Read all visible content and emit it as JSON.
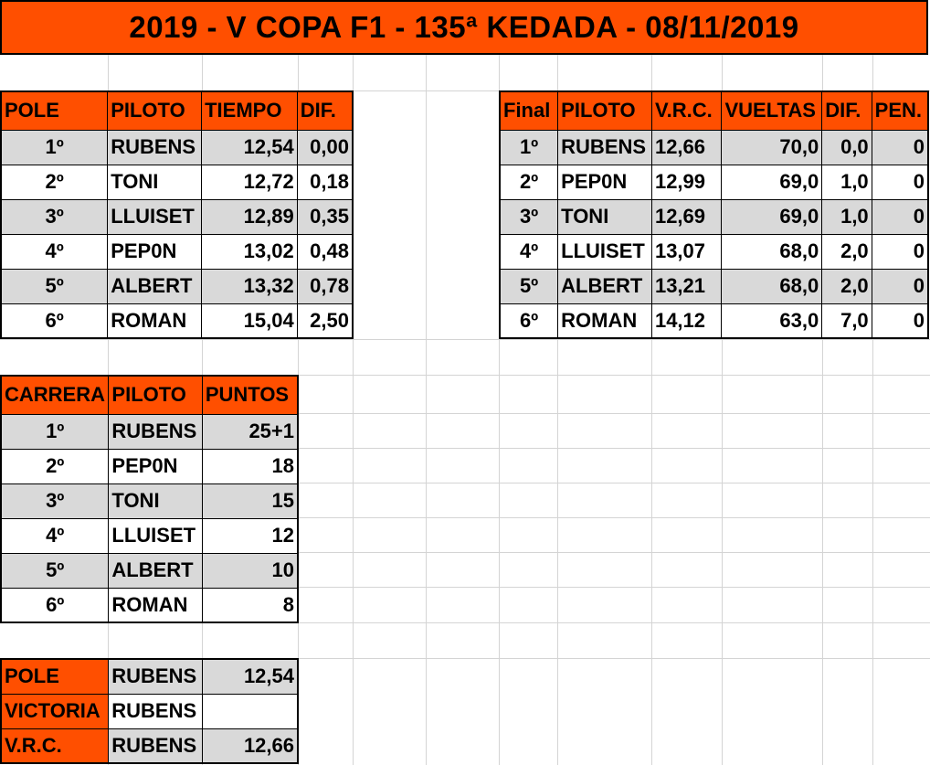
{
  "title": "2019 - V COPA F1 - 135ª KEDADA - 08/11/2019",
  "pole_table": {
    "headers": [
      "POLE",
      "PILOTO",
      "TIEMPO",
      "DIF."
    ],
    "rows": [
      [
        "1º",
        "RUBENS",
        "12,54",
        "0,00"
      ],
      [
        "2º",
        "TONI",
        "12,72",
        "0,18"
      ],
      [
        "3º",
        "LLUISET",
        "12,89",
        "0,35"
      ],
      [
        "4º",
        "PEP0N",
        "13,02",
        "0,48"
      ],
      [
        "5º",
        "ALBERT",
        "13,32",
        "0,78"
      ],
      [
        "6º",
        "ROMAN",
        "15,04",
        "2,50"
      ]
    ]
  },
  "final_table": {
    "headers": [
      "Final",
      "PILOTO",
      "V.R.C.",
      "VUELTAS",
      "DIF.",
      "PEN."
    ],
    "rows": [
      [
        "1º",
        "RUBENS",
        "12,66",
        "70,0",
        "0,0",
        "0"
      ],
      [
        "2º",
        "PEP0N",
        "12,99",
        "69,0",
        "1,0",
        "0"
      ],
      [
        "3º",
        "TONI",
        "12,69",
        "69,0",
        "1,0",
        "0"
      ],
      [
        "4º",
        "LLUISET",
        "13,07",
        "68,0",
        "2,0",
        "0"
      ],
      [
        "5º",
        "ALBERT",
        "13,21",
        "68,0",
        "2,0",
        "0"
      ],
      [
        "6º",
        "ROMAN",
        "14,12",
        "63,0",
        "7,0",
        "0"
      ]
    ]
  },
  "race_table": {
    "headers": [
      "CARRERA",
      "PILOTO",
      "PUNTOS"
    ],
    "rows": [
      [
        "1º",
        "RUBENS",
        "25+1"
      ],
      [
        "2º",
        "PEP0N",
        "18"
      ],
      [
        "3º",
        "TONI",
        "15"
      ],
      [
        "4º",
        "LLUISET",
        "12"
      ],
      [
        "5º",
        "ALBERT",
        "10"
      ],
      [
        "6º",
        "ROMAN",
        "8"
      ]
    ]
  },
  "summary_table": {
    "rows": [
      [
        "POLE",
        "RUBENS",
        "12,54"
      ],
      [
        "VICTORIA",
        "RUBENS",
        ""
      ],
      [
        "V.R.C.",
        "RUBENS",
        "12,66"
      ]
    ]
  }
}
